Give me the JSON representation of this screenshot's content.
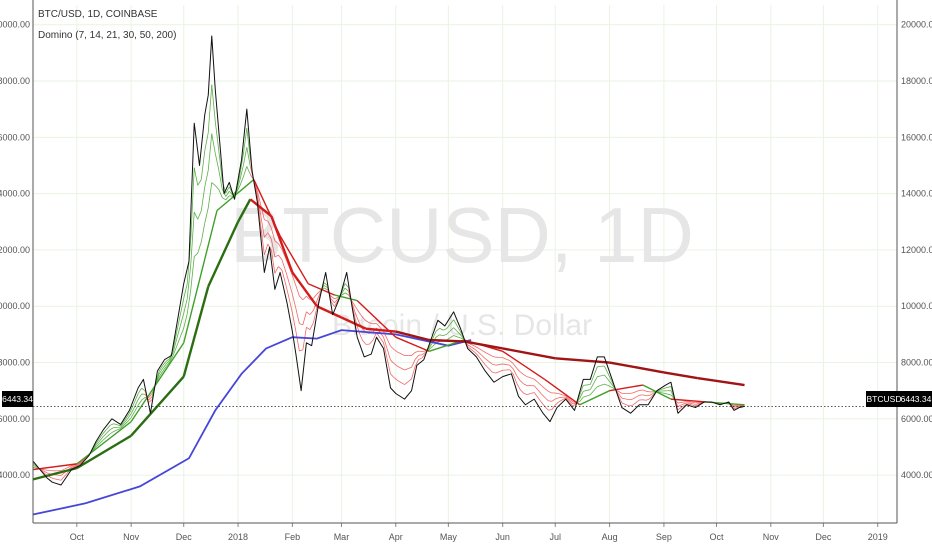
{
  "header": {
    "symbol_line": "BTC/USD, 1D, COINBASE",
    "indicator_line": "Domino (7, 14, 21, 30, 50, 200)"
  },
  "watermark": {
    "main": "BTCUSD, 1D",
    "sub": "Bitcoin / U.S. Dollar"
  },
  "price_badges": {
    "left": "6443.34",
    "right_symbol": "BTCUSD",
    "right_value": "6443.34"
  },
  "colors": {
    "price": "#111111",
    "ma200": "#4646d8",
    "ma_slow_up": "#2b6e12",
    "ma_slow_down": "#d41b1b",
    "ma_fast_up": "#3fa12a",
    "ma_fast_down": "#ee4c4c",
    "ma_long_down": "#a01414",
    "grid": "#eaf2e4"
  },
  "chart_data": {
    "type": "line",
    "title": "BTC/USD, 1D, COINBASE",
    "ylim": [
      2300,
      20700
    ],
    "y_ticks": [
      "20000.00",
      "18000.00",
      "16000.00",
      "14000.00",
      "12000.00",
      "10000.00",
      "8000.00",
      "6000.00",
      "4000.00"
    ],
    "y_tick_values": [
      20000,
      18000,
      16000,
      14000,
      12000,
      10000,
      8000,
      6000,
      4000
    ],
    "x_ticks": [
      "Oct",
      "Nov",
      "Dec",
      "2018",
      "Feb",
      "Mar",
      "Apr",
      "May",
      "Jun",
      "Jul",
      "Aug",
      "Sep",
      "Oct",
      "Nov",
      "Dec",
      "2019"
    ],
    "x_tick_dates": [
      "2017-10-01",
      "2017-11-01",
      "2017-12-01",
      "2018-01-01",
      "2018-02-01",
      "2018-03-01",
      "2018-04-01",
      "2018-05-01",
      "2018-06-01",
      "2018-07-01",
      "2018-08-01",
      "2018-09-01",
      "2018-10-01",
      "2018-11-01",
      "2018-12-01",
      "2019-01-01"
    ],
    "x_range": [
      "2017-09-06",
      "2019-01-12"
    ],
    "last_price": 6443.34,
    "grid": true,
    "series": [
      {
        "name": "BTC/USD",
        "x": [
          "2017-09-06",
          "2017-09-10",
          "2017-09-14",
          "2017-09-17",
          "2017-09-22",
          "2017-09-28",
          "2017-10-03",
          "2017-10-08",
          "2017-10-12",
          "2017-10-16",
          "2017-10-21",
          "2017-10-26",
          "2017-10-31",
          "2017-11-05",
          "2017-11-08",
          "2017-11-12",
          "2017-11-16",
          "2017-11-20",
          "2017-11-24",
          "2017-11-28",
          "2017-12-01",
          "2017-12-04",
          "2017-12-07",
          "2017-12-10",
          "2017-12-13",
          "2017-12-15",
          "2017-12-17",
          "2017-12-19",
          "2017-12-22",
          "2017-12-24",
          "2017-12-27",
          "2017-12-30",
          "2018-01-03",
          "2018-01-06",
          "2018-01-09",
          "2018-01-12",
          "2018-01-16",
          "2018-01-19",
          "2018-01-22",
          "2018-01-25",
          "2018-01-29",
          "2018-02-01",
          "2018-02-03",
          "2018-02-06",
          "2018-02-09",
          "2018-02-12",
          "2018-02-16",
          "2018-02-20",
          "2018-02-24",
          "2018-02-28",
          "2018-03-04",
          "2018-03-07",
          "2018-03-10",
          "2018-03-14",
          "2018-03-18",
          "2018-03-21",
          "2018-03-25",
          "2018-03-29",
          "2018-04-01",
          "2018-04-06",
          "2018-04-10",
          "2018-04-13",
          "2018-04-17",
          "2018-04-21",
          "2018-04-25",
          "2018-04-29",
          "2018-05-04",
          "2018-05-08",
          "2018-05-12",
          "2018-05-17",
          "2018-05-22",
          "2018-05-27",
          "2018-06-01",
          "2018-06-06",
          "2018-06-10",
          "2018-06-14",
          "2018-06-19",
          "2018-06-24",
          "2018-06-28",
          "2018-07-02",
          "2018-07-07",
          "2018-07-12",
          "2018-07-17",
          "2018-07-21",
          "2018-07-25",
          "2018-07-29",
          "2018-08-03",
          "2018-08-08",
          "2018-08-13",
          "2018-08-18",
          "2018-08-23",
          "2018-08-28",
          "2018-09-02",
          "2018-09-05",
          "2018-09-09",
          "2018-09-14",
          "2018-09-19",
          "2018-09-24",
          "2018-09-28",
          "2018-10-03",
          "2018-10-08",
          "2018-10-11",
          "2018-10-14",
          "2018-10-17"
        ],
        "values": [
          4500,
          4200,
          3900,
          3750,
          3650,
          4200,
          4350,
          4700,
          5200,
          5600,
          6000,
          5800,
          6300,
          7100,
          7400,
          6200,
          7700,
          8100,
          8250,
          9700,
          10800,
          11600,
          16500,
          15000,
          16800,
          17500,
          19600,
          17700,
          15500,
          14000,
          14400,
          13800,
          15200,
          17000,
          14800,
          13700,
          11200,
          12100,
          10600,
          11200,
          10100,
          9100,
          8300,
          7000,
          8700,
          8600,
          10100,
          11200,
          9700,
          10300,
          11200,
          10000,
          8900,
          8200,
          8300,
          8900,
          8500,
          7100,
          6900,
          6700,
          7000,
          7900,
          8100,
          8800,
          9500,
          9300,
          9800,
          9200,
          8500,
          8200,
          7700,
          7300,
          7500,
          7600,
          6800,
          6500,
          6700,
          6200,
          5900,
          6400,
          6700,
          6300,
          7400,
          7400,
          8200,
          8200,
          7300,
          6400,
          6200,
          6500,
          6500,
          7000,
          7200,
          7300,
          6200,
          6500,
          6400,
          6600,
          6600,
          6500,
          6600,
          6300,
          6400,
          6443
        ]
      },
      {
        "name": "200",
        "x": [
          "2017-09-06",
          "2017-10-06",
          "2017-11-06",
          "2017-12-04",
          "2017-12-19",
          "2018-01-03",
          "2018-01-17",
          "2018-02-01",
          "2018-02-15",
          "2018-03-01",
          "2018-04-01",
          "2018-05-01",
          "2018-05-14"
        ],
        "values": [
          2600,
          3000,
          3600,
          4600,
          6300,
          7600,
          8500,
          8900,
          8850,
          9150,
          9000,
          8600,
          8800
        ]
      },
      {
        "name": "50",
        "x": [
          "2017-09-06",
          "2017-10-01",
          "2017-11-01",
          "2017-12-01",
          "2017-12-15",
          "2018-01-01",
          "2018-01-08",
          "2018-01-20",
          "2018-02-01",
          "2018-02-15",
          "2018-03-01",
          "2018-03-15",
          "2018-04-01",
          "2018-04-20",
          "2018-05-10",
          "2018-06-01",
          "2018-07-01",
          "2018-08-01",
          "2018-09-01",
          "2018-09-20",
          "2018-10-17"
        ],
        "values": [
          3850,
          4250,
          5400,
          7500,
          10700,
          13000,
          13800,
          13200,
          11200,
          10000,
          9600,
          9200,
          9100,
          8800,
          8750,
          8500,
          8150,
          8000,
          7650,
          7450,
          7200
        ]
      },
      {
        "name": "30",
        "x": [
          "2017-09-06",
          "2017-10-01",
          "2017-11-01",
          "2017-12-01",
          "2017-12-20",
          "2018-01-10",
          "2018-01-25",
          "2018-02-10",
          "2018-02-25",
          "2018-03-10",
          "2018-04-01",
          "2018-04-20",
          "2018-05-10",
          "2018-06-01",
          "2018-06-25",
          "2018-07-15",
          "2018-08-01",
          "2018-08-20",
          "2018-09-05",
          "2018-09-25",
          "2018-10-17"
        ],
        "values": [
          4200,
          4400,
          5900,
          8700,
          13400,
          14500,
          12500,
          10800,
          10400,
          10200,
          8900,
          8400,
          8800,
          8400,
          7400,
          6500,
          7000,
          7200,
          6700,
          6600,
          6500
        ]
      }
    ]
  }
}
